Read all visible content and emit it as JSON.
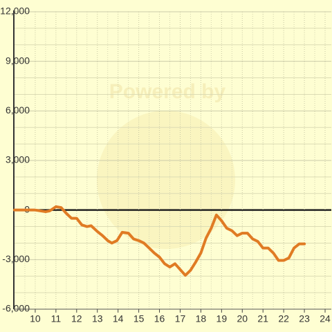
{
  "chart_data": {
    "type": "line",
    "watermark": "Powered by",
    "x": [
      9,
      10,
      10.5,
      10.7,
      11,
      11.25,
      11.5,
      11.75,
      12,
      12.25,
      12.5,
      12.7,
      13,
      13.25,
      13.5,
      13.7,
      13.95,
      14.2,
      14.5,
      14.75,
      15,
      15.25,
      15.5,
      15.75,
      16,
      16.25,
      16.5,
      16.75,
      17,
      17.25,
      17.5,
      17.75,
      18,
      18.25,
      18.5,
      18.75,
      19,
      19.25,
      19.5,
      19.75,
      20,
      20.25,
      20.5,
      20.75,
      21,
      21.25,
      21.5,
      21.75,
      22,
      22.25,
      22.5,
      22.75,
      23
    ],
    "series": [
      {
        "color": "#e07b24",
        "values": [
          0,
          0,
          -100,
          -50,
          200,
          150,
          -200,
          -500,
          -500,
          -900,
          -1000,
          -950,
          -1300,
          -1550,
          -1850,
          -2000,
          -1850,
          -1350,
          -1400,
          -1750,
          -1850,
          -2000,
          -2300,
          -2600,
          -2850,
          -3250,
          -3450,
          -3250,
          -3600,
          -3950,
          -3650,
          -3150,
          -2600,
          -1700,
          -1100,
          -300,
          -650,
          -1100,
          -1250,
          -1550,
          -1400,
          -1400,
          -1750,
          -1900,
          -2300,
          -2300,
          -2600,
          -3050,
          -3050,
          -2900,
          -2300,
          -2050,
          -2050
        ]
      }
    ],
    "xlim": [
      9,
      24.3
    ],
    "ylim": [
      -6000,
      12000
    ],
    "xticks": [
      10,
      11,
      12,
      13,
      14,
      15,
      16,
      17,
      18,
      19,
      20,
      21,
      22,
      23,
      24
    ],
    "yticks": [
      {
        "value": -6000,
        "label": "-6,000"
      },
      {
        "value": -3000,
        "label": "-3,000"
      },
      0,
      {
        "value": 3000,
        "label": "3,000"
      },
      {
        "value": 6000,
        "label": "6,000"
      },
      {
        "value": 9000,
        "label": "9,000"
      },
      {
        "value": 12000,
        "label": "12,000"
      }
    ],
    "minor_xticks": [
      9.5,
      10.5,
      11.5,
      12.5,
      13.5,
      14.5,
      15.5,
      16.5,
      17.5,
      18.5,
      19.5,
      20.5,
      21.5,
      22.5,
      23.5
    ],
    "minor_yticks": [
      -5000,
      -4000,
      -2000,
      -1000,
      1000,
      2000,
      4000,
      5000,
      7000,
      8000,
      10000,
      11000
    ],
    "grid": true
  }
}
